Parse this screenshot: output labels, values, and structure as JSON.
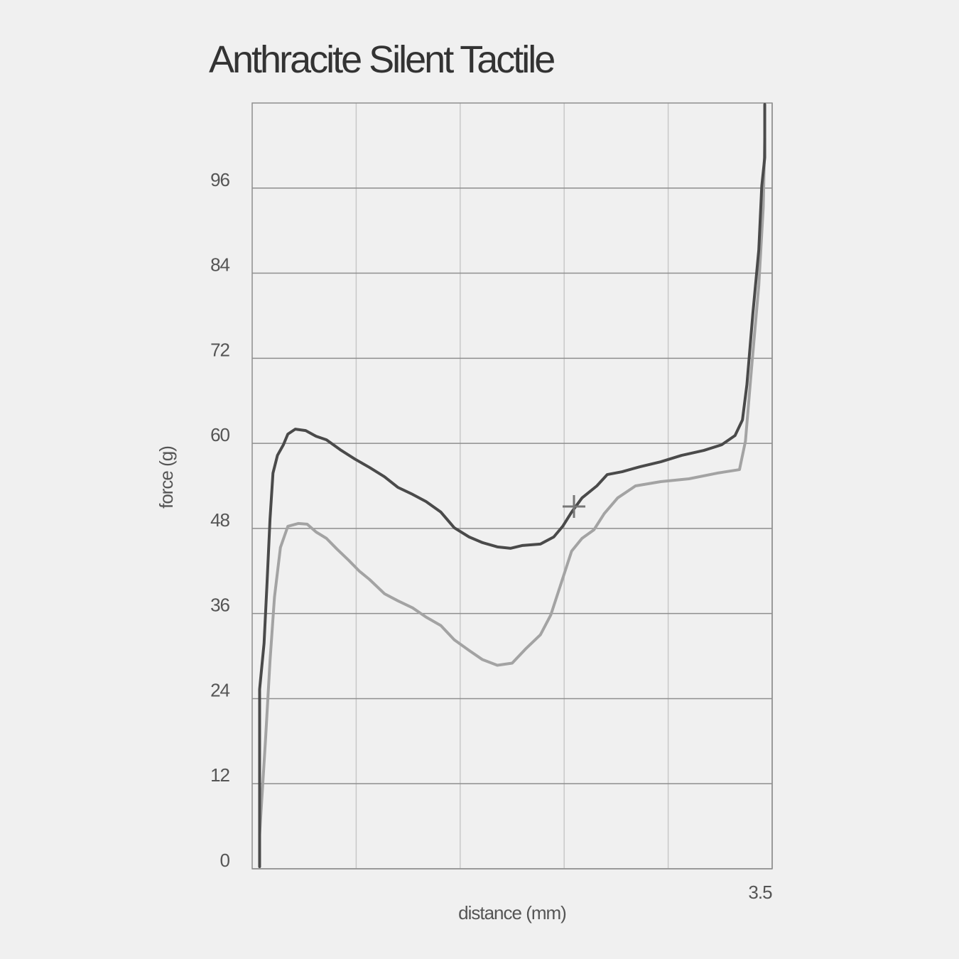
{
  "chart_data": {
    "type": "line",
    "title": "Anthracite Silent Tactile",
    "x_label": "distance (mm)",
    "y_label": "force (g)",
    "xlim": [
      0,
      3.5
    ],
    "xticks": [
      3.5
    ],
    "ylim": [
      0,
      108
    ],
    "yticks": [
      0,
      12,
      24,
      36,
      48,
      60,
      72,
      84,
      96
    ],
    "grid": true,
    "series": [
      {
        "color": "#4a4a4a",
        "x": [
          0.05,
          0.05,
          0.08,
          0.1,
          0.12,
          0.14,
          0.17,
          0.21,
          0.24,
          0.29,
          0.36,
          0.43,
          0.5,
          0.6,
          0.69,
          0.79,
          0.89,
          0.98,
          1.08,
          1.17,
          1.27,
          1.36,
          1.46,
          1.55,
          1.65,
          1.74,
          1.82,
          1.94,
          2.03,
          2.09,
          2.15,
          2.22,
          2.32,
          2.39,
          2.49,
          2.61,
          2.75,
          2.89,
          3.04,
          3.16,
          3.25,
          3.3,
          3.33,
          3.37,
          3.41,
          3.43,
          3.45,
          3.45
        ],
        "values": [
          0.3,
          25.3,
          31.8,
          40.3,
          49.3,
          55.8,
          58.3,
          59.8,
          61.3,
          62.0,
          61.8,
          61.0,
          60.5,
          59.0,
          57.8,
          56.6,
          55.3,
          53.8,
          52.8,
          51.8,
          50.3,
          48.1,
          46.8,
          46.0,
          45.4,
          45.2,
          45.6,
          45.8,
          46.8,
          48.3,
          50.3,
          52.3,
          54.0,
          55.6,
          56.0,
          56.7,
          57.4,
          58.3,
          59.0,
          59.8,
          61.1,
          63.3,
          68.3,
          78.3,
          87.3,
          96.3,
          100.3,
          107.8
        ]
      },
      {
        "color": "#a3a3a3",
        "x": [
          0.05,
          0.09,
          0.12,
          0.15,
          0.19,
          0.24,
          0.31,
          0.37,
          0.43,
          0.5,
          0.57,
          0.65,
          0.72,
          0.79,
          0.89,
          0.98,
          1.08,
          1.17,
          1.27,
          1.36,
          1.46,
          1.55,
          1.65,
          1.75,
          1.84,
          1.94,
          2.01,
          2.08,
          2.15,
          2.22,
          2.3,
          2.37,
          2.46,
          2.58,
          2.75,
          2.94,
          3.13,
          3.28,
          3.32,
          3.36,
          3.41,
          3.44,
          3.45
        ],
        "values": [
          4.8,
          18.3,
          29.3,
          38.3,
          45.3,
          48.3,
          48.7,
          48.6,
          47.5,
          46.6,
          45.1,
          43.5,
          42.0,
          40.8,
          38.8,
          37.8,
          36.8,
          35.5,
          34.3,
          32.3,
          30.8,
          29.5,
          28.7,
          29.0,
          31.0,
          33.0,
          35.8,
          40.3,
          44.8,
          46.6,
          47.8,
          50.1,
          52.3,
          54.0,
          54.6,
          55.0,
          55.8,
          56.3,
          60.3,
          70.3,
          82.3,
          93.3,
          103.0
        ]
      }
    ]
  }
}
